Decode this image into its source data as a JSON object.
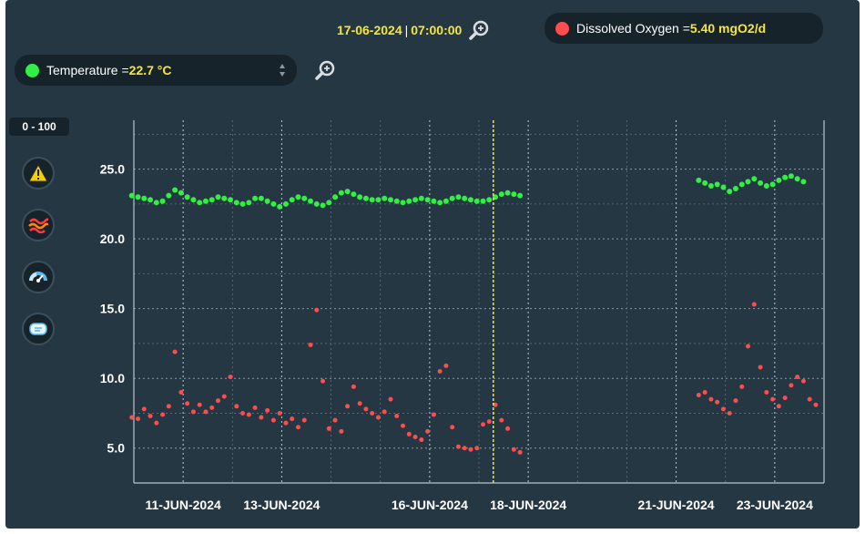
{
  "header": {
    "date": "17-06-2024",
    "separator": "|",
    "time": "07:00:00"
  },
  "dissolved_oxygen": {
    "label": "Dissolved Oxygen = ",
    "value": "5.40 mgO2/d",
    "color": "#ff4c4c"
  },
  "temperature": {
    "label": "Temperature = ",
    "value": "22.7 °C",
    "color": "#33ee44"
  },
  "range_badge": "0 - 100",
  "tools": [
    "warning-icon",
    "waves-icon",
    "gauge-icon",
    "message-icon"
  ],
  "chart_data": {
    "type": "scatter",
    "x_axis": {
      "type": "date",
      "range": [
        "2024-06-10",
        "2024-06-24"
      ]
    },
    "y_axis": {
      "range": [
        2.5,
        28.5
      ],
      "ticks": [
        "25.0",
        "20.0",
        "15.0",
        "10.0",
        "5.0"
      ]
    },
    "x_tick_labels": [
      {
        "date": "2024-06-11",
        "label": "11-JUN-2024"
      },
      {
        "date": "2024-06-13",
        "label": "13-JUN-2024"
      },
      {
        "date": "2024-06-16",
        "label": "16-JUN-2024"
      },
      {
        "date": "2024-06-18",
        "label": "18-JUN-2024"
      },
      {
        "date": "2024-06-21",
        "label": "21-JUN-2024"
      },
      {
        "date": "2024-06-23",
        "label": "23-JUN-2024"
      }
    ],
    "cursor": {
      "x": "2024-06-17T07:00"
    },
    "grid": true,
    "series": [
      {
        "color": "#33ee44",
        "points": [
          [
            "2024-06-09T23:00",
            23.1
          ],
          [
            "2024-06-10T02:00",
            23.0
          ],
          [
            "2024-06-10T05:00",
            22.9
          ],
          [
            "2024-06-10T08:00",
            22.8
          ],
          [
            "2024-06-10T11:00",
            22.6
          ],
          [
            "2024-06-10T14:00",
            22.7
          ],
          [
            "2024-06-10T17:00",
            23.1
          ],
          [
            "2024-06-10T20:00",
            23.5
          ],
          [
            "2024-06-10T23:00",
            23.3
          ],
          [
            "2024-06-11T02:00",
            23.0
          ],
          [
            "2024-06-11T05:00",
            22.8
          ],
          [
            "2024-06-11T08:00",
            22.6
          ],
          [
            "2024-06-11T11:00",
            22.7
          ],
          [
            "2024-06-11T14:00",
            22.8
          ],
          [
            "2024-06-11T17:00",
            23.0
          ],
          [
            "2024-06-11T20:00",
            22.9
          ],
          [
            "2024-06-11T23:00",
            22.8
          ],
          [
            "2024-06-12T02:00",
            22.6
          ],
          [
            "2024-06-12T05:00",
            22.5
          ],
          [
            "2024-06-12T08:00",
            22.6
          ],
          [
            "2024-06-12T11:00",
            22.9
          ],
          [
            "2024-06-12T14:00",
            22.9
          ],
          [
            "2024-06-12T17:00",
            22.7
          ],
          [
            "2024-06-12T20:00",
            22.5
          ],
          [
            "2024-06-12T23:00",
            22.3
          ],
          [
            "2024-06-13T02:00",
            22.5
          ],
          [
            "2024-06-13T05:00",
            22.8
          ],
          [
            "2024-06-13T08:00",
            23.0
          ],
          [
            "2024-06-13T11:00",
            22.9
          ],
          [
            "2024-06-13T14:00",
            22.7
          ],
          [
            "2024-06-13T17:00",
            22.5
          ],
          [
            "2024-06-13T20:00",
            22.4
          ],
          [
            "2024-06-13T23:00",
            22.6
          ],
          [
            "2024-06-14T02:00",
            23.0
          ],
          [
            "2024-06-14T05:00",
            23.3
          ],
          [
            "2024-06-14T08:00",
            23.4
          ],
          [
            "2024-06-14T11:00",
            23.2
          ],
          [
            "2024-06-14T14:00",
            23.0
          ],
          [
            "2024-06-14T17:00",
            22.9
          ],
          [
            "2024-06-14T20:00",
            22.8
          ],
          [
            "2024-06-14T23:00",
            22.8
          ],
          [
            "2024-06-15T02:00",
            22.9
          ],
          [
            "2024-06-15T05:00",
            22.8
          ],
          [
            "2024-06-15T08:00",
            22.7
          ],
          [
            "2024-06-15T11:00",
            22.6
          ],
          [
            "2024-06-15T14:00",
            22.7
          ],
          [
            "2024-06-15T17:00",
            22.8
          ],
          [
            "2024-06-15T20:00",
            22.9
          ],
          [
            "2024-06-15T23:00",
            22.8
          ],
          [
            "2024-06-16T02:00",
            22.7
          ],
          [
            "2024-06-16T05:00",
            22.6
          ],
          [
            "2024-06-16T08:00",
            22.7
          ],
          [
            "2024-06-16T11:00",
            22.9
          ],
          [
            "2024-06-16T14:00",
            23.0
          ],
          [
            "2024-06-16T17:00",
            22.9
          ],
          [
            "2024-06-16T20:00",
            22.8
          ],
          [
            "2024-06-16T23:00",
            22.7
          ],
          [
            "2024-06-17T02:00",
            22.7
          ],
          [
            "2024-06-17T05:00",
            22.8
          ],
          [
            "2024-06-17T08:00",
            23.0
          ],
          [
            "2024-06-17T11:00",
            23.2
          ],
          [
            "2024-06-17T14:00",
            23.3
          ],
          [
            "2024-06-17T17:00",
            23.2
          ],
          [
            "2024-06-17T20:00",
            23.1
          ],
          [
            "2024-06-21T11:00",
            24.2
          ],
          [
            "2024-06-21T14:00",
            24.0
          ],
          [
            "2024-06-21T17:00",
            23.8
          ],
          [
            "2024-06-21T20:00",
            23.9
          ],
          [
            "2024-06-21T23:00",
            23.7
          ],
          [
            "2024-06-22T02:00",
            23.4
          ],
          [
            "2024-06-22T05:00",
            23.6
          ],
          [
            "2024-06-22T08:00",
            23.9
          ],
          [
            "2024-06-22T11:00",
            24.1
          ],
          [
            "2024-06-22T14:00",
            24.3
          ],
          [
            "2024-06-22T17:00",
            24.0
          ],
          [
            "2024-06-22T20:00",
            23.8
          ],
          [
            "2024-06-22T23:00",
            23.9
          ],
          [
            "2024-06-23T02:00",
            24.2
          ],
          [
            "2024-06-23T05:00",
            24.4
          ],
          [
            "2024-06-23T08:00",
            24.5
          ],
          [
            "2024-06-23T11:00",
            24.3
          ],
          [
            "2024-06-23T14:00",
            24.1
          ]
        ]
      },
      {
        "color": "#ff4c4c",
        "points": [
          [
            "2024-06-09T23:00",
            7.2
          ],
          [
            "2024-06-10T02:00",
            7.1
          ],
          [
            "2024-06-10T05:00",
            7.8
          ],
          [
            "2024-06-10T08:00",
            7.3
          ],
          [
            "2024-06-10T11:00",
            6.8
          ],
          [
            "2024-06-10T14:00",
            7.4
          ],
          [
            "2024-06-10T17:00",
            8.0
          ],
          [
            "2024-06-10T20:00",
            11.9
          ],
          [
            "2024-06-10T23:00",
            9.0
          ],
          [
            "2024-06-11T02:00",
            8.2
          ],
          [
            "2024-06-11T05:00",
            7.6
          ],
          [
            "2024-06-11T08:00",
            8.1
          ],
          [
            "2024-06-11T11:00",
            7.6
          ],
          [
            "2024-06-11T14:00",
            7.9
          ],
          [
            "2024-06-11T17:00",
            8.4
          ],
          [
            "2024-06-11T20:00",
            8.7
          ],
          [
            "2024-06-11T23:00",
            10.1
          ],
          [
            "2024-06-12T02:00",
            8.0
          ],
          [
            "2024-06-12T05:00",
            7.5
          ],
          [
            "2024-06-12T08:00",
            7.4
          ],
          [
            "2024-06-12T11:00",
            7.9
          ],
          [
            "2024-06-12T14:00",
            7.2
          ],
          [
            "2024-06-12T17:00",
            7.7
          ],
          [
            "2024-06-12T20:00",
            7.0
          ],
          [
            "2024-06-12T23:00",
            7.5
          ],
          [
            "2024-06-13T02:00",
            6.8
          ],
          [
            "2024-06-13T05:00",
            7.1
          ],
          [
            "2024-06-13T08:00",
            6.5
          ],
          [
            "2024-06-13T11:00",
            7.0
          ],
          [
            "2024-06-13T14:00",
            12.4
          ],
          [
            "2024-06-13T17:00",
            14.9
          ],
          [
            "2024-06-13T20:00",
            9.8
          ],
          [
            "2024-06-13T23:00",
            6.4
          ],
          [
            "2024-06-14T02:00",
            7.0
          ],
          [
            "2024-06-14T05:00",
            6.2
          ],
          [
            "2024-06-14T08:00",
            8.0
          ],
          [
            "2024-06-14T11:00",
            9.4
          ],
          [
            "2024-06-14T14:00",
            8.2
          ],
          [
            "2024-06-14T17:00",
            7.8
          ],
          [
            "2024-06-14T20:00",
            7.5
          ],
          [
            "2024-06-14T23:00",
            7.2
          ],
          [
            "2024-06-15T02:00",
            7.6
          ],
          [
            "2024-06-15T05:00",
            8.5
          ],
          [
            "2024-06-15T08:00",
            7.3
          ],
          [
            "2024-06-15T11:00",
            6.6
          ],
          [
            "2024-06-15T14:00",
            6.0
          ],
          [
            "2024-06-15T17:00",
            5.8
          ],
          [
            "2024-06-15T20:00",
            5.6
          ],
          [
            "2024-06-15T23:00",
            6.2
          ],
          [
            "2024-06-16T02:00",
            7.4
          ],
          [
            "2024-06-16T05:00",
            10.5
          ],
          [
            "2024-06-16T08:00",
            10.9
          ],
          [
            "2024-06-16T11:00",
            6.5
          ],
          [
            "2024-06-16T14:00",
            5.1
          ],
          [
            "2024-06-16T17:00",
            5.0
          ],
          [
            "2024-06-16T20:00",
            4.9
          ],
          [
            "2024-06-16T23:00",
            5.0
          ],
          [
            "2024-06-17T02:00",
            6.7
          ],
          [
            "2024-06-17T05:00",
            6.9
          ],
          [
            "2024-06-17T08:00",
            8.1
          ],
          [
            "2024-06-17T11:00",
            7.0
          ],
          [
            "2024-06-17T14:00",
            6.4
          ],
          [
            "2024-06-17T17:00",
            4.9
          ],
          [
            "2024-06-17T20:00",
            4.7
          ],
          [
            "2024-06-21T11:00",
            8.8
          ],
          [
            "2024-06-21T14:00",
            9.0
          ],
          [
            "2024-06-21T17:00",
            8.5
          ],
          [
            "2024-06-21T20:00",
            8.3
          ],
          [
            "2024-06-21T23:00",
            7.8
          ],
          [
            "2024-06-22T02:00",
            7.5
          ],
          [
            "2024-06-22T05:00",
            8.4
          ],
          [
            "2024-06-22T08:00",
            9.4
          ],
          [
            "2024-06-22T11:00",
            12.3
          ],
          [
            "2024-06-22T14:00",
            15.3
          ],
          [
            "2024-06-22T17:00",
            10.8
          ],
          [
            "2024-06-22T20:00",
            9.0
          ],
          [
            "2024-06-22T23:00",
            8.5
          ],
          [
            "2024-06-23T02:00",
            8.0
          ],
          [
            "2024-06-23T05:00",
            8.6
          ],
          [
            "2024-06-23T08:00",
            9.5
          ],
          [
            "2024-06-23T11:00",
            10.1
          ],
          [
            "2024-06-23T14:00",
            9.8
          ],
          [
            "2024-06-23T17:00",
            8.5
          ],
          [
            "2024-06-23T20:00",
            8.1
          ]
        ]
      }
    ]
  }
}
